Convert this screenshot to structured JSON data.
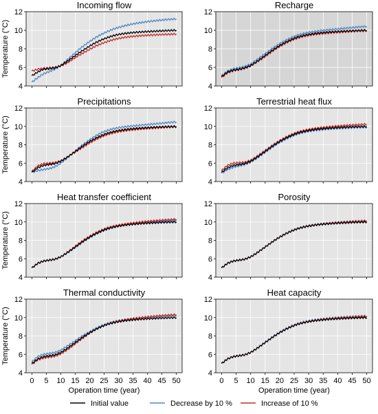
{
  "figure": {
    "ylabel": "Temperature (°C)",
    "xlabel": "Operation time (year)",
    "panel_bg": "#e5e5e5",
    "panel_bg_dark": "#d6d6d6",
    "grid_color": "#ffffff",
    "legend": [
      {
        "label": "Initial value",
        "color": "#000000"
      },
      {
        "label": "Decrease by 10 %",
        "color": "#4a86c5"
      },
      {
        "label": "Increase of 10 %",
        "color": "#c42a2a"
      }
    ]
  },
  "chart_data": [
    {
      "type": "line",
      "title": "Incoming flow",
      "xlim": [
        -2,
        52
      ],
      "ylim": [
        4,
        12
      ],
      "x": [
        0,
        2,
        4,
        6,
        8,
        10,
        12,
        14,
        16,
        18,
        20,
        22,
        24,
        26,
        28,
        30,
        32,
        34,
        36,
        38,
        40,
        42,
        44,
        46,
        48,
        50
      ],
      "series": [
        {
          "name": "Initial value",
          "values": [
            5.1,
            5.5,
            5.8,
            5.85,
            5.95,
            6.2,
            6.6,
            7.05,
            7.5,
            7.9,
            8.3,
            8.65,
            8.95,
            9.2,
            9.4,
            9.55,
            9.65,
            9.72,
            9.78,
            9.82,
            9.86,
            9.89,
            9.92,
            9.95,
            9.98,
            10.0
          ]
        },
        {
          "name": "Decrease by 10 %",
          "values": [
            4.4,
            4.9,
            5.3,
            5.55,
            5.8,
            6.2,
            6.75,
            7.3,
            7.85,
            8.35,
            8.8,
            9.2,
            9.55,
            9.85,
            10.1,
            10.3,
            10.48,
            10.62,
            10.74,
            10.84,
            10.93,
            11.0,
            11.07,
            11.13,
            11.18,
            11.22
          ]
        },
        {
          "name": "Increase of 10 %",
          "values": [
            5.6,
            5.8,
            5.9,
            5.95,
            6.0,
            6.15,
            6.45,
            6.85,
            7.25,
            7.6,
            7.95,
            8.28,
            8.55,
            8.78,
            8.97,
            9.12,
            9.23,
            9.31,
            9.37,
            9.42,
            9.46,
            9.49,
            9.52,
            9.55,
            9.57,
            9.6
          ]
        }
      ]
    },
    {
      "type": "line",
      "title": "Recharge",
      "xlim": [
        -2,
        52
      ],
      "ylim": [
        4,
        12
      ],
      "dark_bg": true,
      "x": [
        0,
        2,
        4,
        6,
        8,
        10,
        12,
        14,
        16,
        18,
        20,
        22,
        24,
        26,
        28,
        30,
        32,
        34,
        36,
        38,
        40,
        42,
        44,
        46,
        48,
        50
      ],
      "series": [
        {
          "name": "Initial value",
          "values": [
            5.0,
            5.5,
            5.7,
            5.8,
            5.95,
            6.2,
            6.6,
            7.05,
            7.5,
            7.95,
            8.35,
            8.7,
            9.0,
            9.25,
            9.42,
            9.55,
            9.65,
            9.72,
            9.78,
            9.83,
            9.87,
            9.9,
            9.93,
            9.96,
            9.98,
            10.0
          ]
        },
        {
          "name": "Decrease by 10 %",
          "values": [
            5.1,
            5.6,
            5.85,
            5.95,
            6.1,
            6.35,
            6.8,
            7.25,
            7.7,
            8.15,
            8.55,
            8.9,
            9.2,
            9.45,
            9.63,
            9.77,
            9.87,
            9.95,
            10.02,
            10.08,
            10.14,
            10.2,
            10.26,
            10.32,
            10.37,
            10.42
          ]
        },
        {
          "name": "Increase of 10 %",
          "values": [
            4.9,
            5.4,
            5.65,
            5.75,
            5.9,
            6.15,
            6.55,
            6.95,
            7.4,
            7.85,
            8.25,
            8.6,
            8.9,
            9.15,
            9.32,
            9.45,
            9.55,
            9.62,
            9.68,
            9.73,
            9.78,
            9.82,
            9.86,
            9.9,
            9.93,
            9.95
          ]
        }
      ]
    },
    {
      "type": "line",
      "title": "Precipitations",
      "xlim": [
        -2,
        52
      ],
      "ylim": [
        4,
        12
      ],
      "x": [
        0,
        2,
        4,
        6,
        8,
        10,
        12,
        14,
        16,
        18,
        20,
        22,
        24,
        26,
        28,
        30,
        32,
        34,
        36,
        38,
        40,
        42,
        44,
        46,
        48,
        50
      ],
      "series": [
        {
          "name": "Initial value",
          "values": [
            5.0,
            5.5,
            5.75,
            5.85,
            5.95,
            6.2,
            6.6,
            7.05,
            7.5,
            7.95,
            8.35,
            8.7,
            9.0,
            9.25,
            9.42,
            9.55,
            9.65,
            9.72,
            9.78,
            9.83,
            9.87,
            9.9,
            9.93,
            9.96,
            9.98,
            10.0
          ]
        },
        {
          "name": "Decrease by 10 %",
          "values": [
            5.0,
            5.2,
            5.3,
            5.4,
            5.6,
            6.0,
            6.5,
            7.05,
            7.6,
            8.1,
            8.55,
            8.95,
            9.3,
            9.55,
            9.73,
            9.86,
            9.95,
            10.02,
            10.08,
            10.14,
            10.2,
            10.26,
            10.32,
            10.38,
            10.43,
            10.48
          ]
        },
        {
          "name": "Increase of 10 %",
          "values": [
            5.1,
            5.7,
            5.95,
            6.0,
            6.05,
            6.25,
            6.6,
            7.0,
            7.4,
            7.8,
            8.2,
            8.55,
            8.85,
            9.1,
            9.28,
            9.42,
            9.52,
            9.6,
            9.66,
            9.72,
            9.77,
            9.81,
            9.85,
            9.89,
            9.92,
            9.95
          ]
        }
      ]
    },
    {
      "type": "line",
      "title": "Terrestrial heat flux",
      "xlim": [
        -2,
        52
      ],
      "ylim": [
        4,
        12
      ],
      "x": [
        0,
        2,
        4,
        6,
        8,
        10,
        12,
        14,
        16,
        18,
        20,
        22,
        24,
        26,
        28,
        30,
        32,
        34,
        36,
        38,
        40,
        42,
        44,
        46,
        48,
        50
      ],
      "series": [
        {
          "name": "Initial value",
          "values": [
            5.0,
            5.5,
            5.75,
            5.85,
            5.95,
            6.2,
            6.6,
            7.05,
            7.5,
            7.95,
            8.35,
            8.7,
            9.0,
            9.25,
            9.42,
            9.55,
            9.65,
            9.72,
            9.78,
            9.83,
            9.87,
            9.9,
            9.93,
            9.96,
            9.98,
            10.0
          ]
        },
        {
          "name": "Decrease by 10 %",
          "values": [
            4.9,
            5.3,
            5.55,
            5.7,
            5.85,
            6.1,
            6.5,
            6.95,
            7.4,
            7.85,
            8.25,
            8.6,
            8.9,
            9.15,
            9.33,
            9.46,
            9.56,
            9.63,
            9.69,
            9.74,
            9.78,
            9.81,
            9.84,
            9.87,
            9.89,
            9.9
          ]
        },
        {
          "name": "Increase of 10 %",
          "values": [
            5.2,
            5.75,
            6.0,
            6.05,
            6.1,
            6.3,
            6.7,
            7.15,
            7.6,
            8.05,
            8.45,
            8.8,
            9.1,
            9.35,
            9.53,
            9.67,
            9.77,
            9.85,
            9.92,
            9.98,
            10.03,
            10.08,
            10.12,
            10.16,
            10.2,
            10.25
          ]
        }
      ]
    },
    {
      "type": "line",
      "title": "Heat transfer coefficient",
      "xlim": [
        -2,
        52
      ],
      "ylim": [
        4,
        12
      ],
      "x": [
        0,
        2,
        4,
        6,
        8,
        10,
        12,
        14,
        16,
        18,
        20,
        22,
        24,
        26,
        28,
        30,
        32,
        34,
        36,
        38,
        40,
        42,
        44,
        46,
        48,
        50
      ],
      "series": [
        {
          "name": "Initial value",
          "values": [
            5.0,
            5.5,
            5.75,
            5.85,
            5.95,
            6.2,
            6.6,
            7.05,
            7.5,
            7.95,
            8.35,
            8.7,
            9.0,
            9.25,
            9.42,
            9.55,
            9.65,
            9.72,
            9.78,
            9.83,
            9.87,
            9.9,
            9.93,
            9.96,
            9.98,
            10.0
          ]
        },
        {
          "name": "Decrease by 10 %",
          "values": [
            5.0,
            5.5,
            5.75,
            5.85,
            5.95,
            6.2,
            6.6,
            7.0,
            7.45,
            7.9,
            8.3,
            8.65,
            8.95,
            9.2,
            9.4,
            9.55,
            9.66,
            9.75,
            9.83,
            9.9,
            9.96,
            10.01,
            10.06,
            10.1,
            10.14,
            10.18
          ]
        },
        {
          "name": "Increase of 10 %",
          "values": [
            5.0,
            5.5,
            5.75,
            5.85,
            5.95,
            6.2,
            6.65,
            7.1,
            7.6,
            8.05,
            8.45,
            8.8,
            9.1,
            9.35,
            9.52,
            9.65,
            9.76,
            9.85,
            9.93,
            10.0,
            10.06,
            10.12,
            10.17,
            10.22,
            10.26,
            10.3
          ]
        }
      ]
    },
    {
      "type": "line",
      "title": "Porosity",
      "xlim": [
        -2,
        52
      ],
      "ylim": [
        4,
        12
      ],
      "x": [
        0,
        2,
        4,
        6,
        8,
        10,
        12,
        14,
        16,
        18,
        20,
        22,
        24,
        26,
        28,
        30,
        32,
        34,
        36,
        38,
        40,
        42,
        44,
        46,
        48,
        50
      ],
      "series": [
        {
          "name": "Initial value",
          "values": [
            5.0,
            5.5,
            5.75,
            5.85,
            5.95,
            6.2,
            6.6,
            7.05,
            7.5,
            7.95,
            8.35,
            8.7,
            9.0,
            9.25,
            9.42,
            9.55,
            9.65,
            9.72,
            9.78,
            9.83,
            9.87,
            9.9,
            9.93,
            9.96,
            9.98,
            10.0
          ]
        },
        {
          "name": "Decrease by 10 %",
          "values": [
            5.0,
            5.5,
            5.75,
            5.85,
            5.95,
            6.2,
            6.6,
            7.05,
            7.5,
            7.95,
            8.35,
            8.72,
            9.02,
            9.28,
            9.46,
            9.6,
            9.7,
            9.78,
            9.85,
            9.91,
            9.96,
            10.0,
            10.04,
            10.08,
            10.11,
            10.14
          ]
        },
        {
          "name": "Increase of 10 %",
          "values": [
            5.0,
            5.5,
            5.75,
            5.85,
            5.95,
            6.2,
            6.6,
            7.05,
            7.5,
            7.95,
            8.35,
            8.7,
            9.0,
            9.25,
            9.43,
            9.57,
            9.67,
            9.75,
            9.82,
            9.88,
            9.93,
            9.97,
            10.01,
            10.05,
            10.08,
            10.12
          ]
        }
      ]
    },
    {
      "type": "line",
      "title": "Thermal conductivity",
      "xlim": [
        -2,
        52
      ],
      "ylim": [
        4,
        12
      ],
      "x": [
        0,
        2,
        4,
        6,
        8,
        10,
        12,
        14,
        16,
        18,
        20,
        22,
        24,
        26,
        28,
        30,
        32,
        34,
        36,
        38,
        40,
        42,
        44,
        46,
        48,
        50
      ],
      "series": [
        {
          "name": "Initial value",
          "values": [
            5.0,
            5.5,
            5.75,
            5.85,
            5.95,
            6.2,
            6.6,
            7.05,
            7.5,
            7.95,
            8.35,
            8.7,
            9.0,
            9.25,
            9.42,
            9.55,
            9.65,
            9.72,
            9.78,
            9.83,
            9.87,
            9.9,
            9.93,
            9.96,
            9.98,
            10.0
          ]
        },
        {
          "name": "Decrease by 10 %",
          "values": [
            5.2,
            5.75,
            6.0,
            6.1,
            6.2,
            6.45,
            6.85,
            7.25,
            7.7,
            8.1,
            8.45,
            8.8,
            9.1,
            9.33,
            9.52,
            9.66,
            9.77,
            9.86,
            9.93,
            9.99,
            10.04,
            10.09,
            10.13,
            10.17,
            10.2,
            10.23
          ]
        },
        {
          "name": "Increase of 10 %",
          "values": [
            4.9,
            5.4,
            5.6,
            5.7,
            5.8,
            6.05,
            6.45,
            6.9,
            7.4,
            7.85,
            8.3,
            8.68,
            9.0,
            9.27,
            9.47,
            9.62,
            9.74,
            9.84,
            9.92,
            10.0,
            10.07,
            10.13,
            10.19,
            10.24,
            10.28,
            10.32
          ]
        }
      ]
    },
    {
      "type": "line",
      "title": "Heat capacity",
      "xlim": [
        -2,
        52
      ],
      "ylim": [
        4,
        12
      ],
      "x": [
        0,
        2,
        4,
        6,
        8,
        10,
        12,
        14,
        16,
        18,
        20,
        22,
        24,
        26,
        28,
        30,
        32,
        34,
        36,
        38,
        40,
        42,
        44,
        46,
        48,
        50
      ],
      "series": [
        {
          "name": "Initial value",
          "values": [
            5.0,
            5.5,
            5.75,
            5.85,
            5.95,
            6.2,
            6.6,
            7.05,
            7.5,
            7.95,
            8.35,
            8.7,
            9.0,
            9.25,
            9.42,
            9.55,
            9.65,
            9.72,
            9.78,
            9.83,
            9.87,
            9.9,
            9.93,
            9.96,
            9.98,
            10.0
          ]
        },
        {
          "name": "Decrease by 10 %",
          "values": [
            5.0,
            5.5,
            5.75,
            5.85,
            5.95,
            6.2,
            6.62,
            7.08,
            7.55,
            8.0,
            8.4,
            8.76,
            9.06,
            9.31,
            9.49,
            9.63,
            9.74,
            9.82,
            9.89,
            9.95,
            10.0,
            10.04,
            10.08,
            10.12,
            10.15,
            10.18
          ]
        },
        {
          "name": "Increase of 10 %",
          "values": [
            5.0,
            5.5,
            5.75,
            5.85,
            5.95,
            6.2,
            6.6,
            7.05,
            7.5,
            7.95,
            8.36,
            8.72,
            9.02,
            9.27,
            9.45,
            9.59,
            9.69,
            9.77,
            9.84,
            9.9,
            9.95,
            9.99,
            10.03,
            10.07,
            10.1,
            10.13
          ]
        }
      ]
    }
  ]
}
